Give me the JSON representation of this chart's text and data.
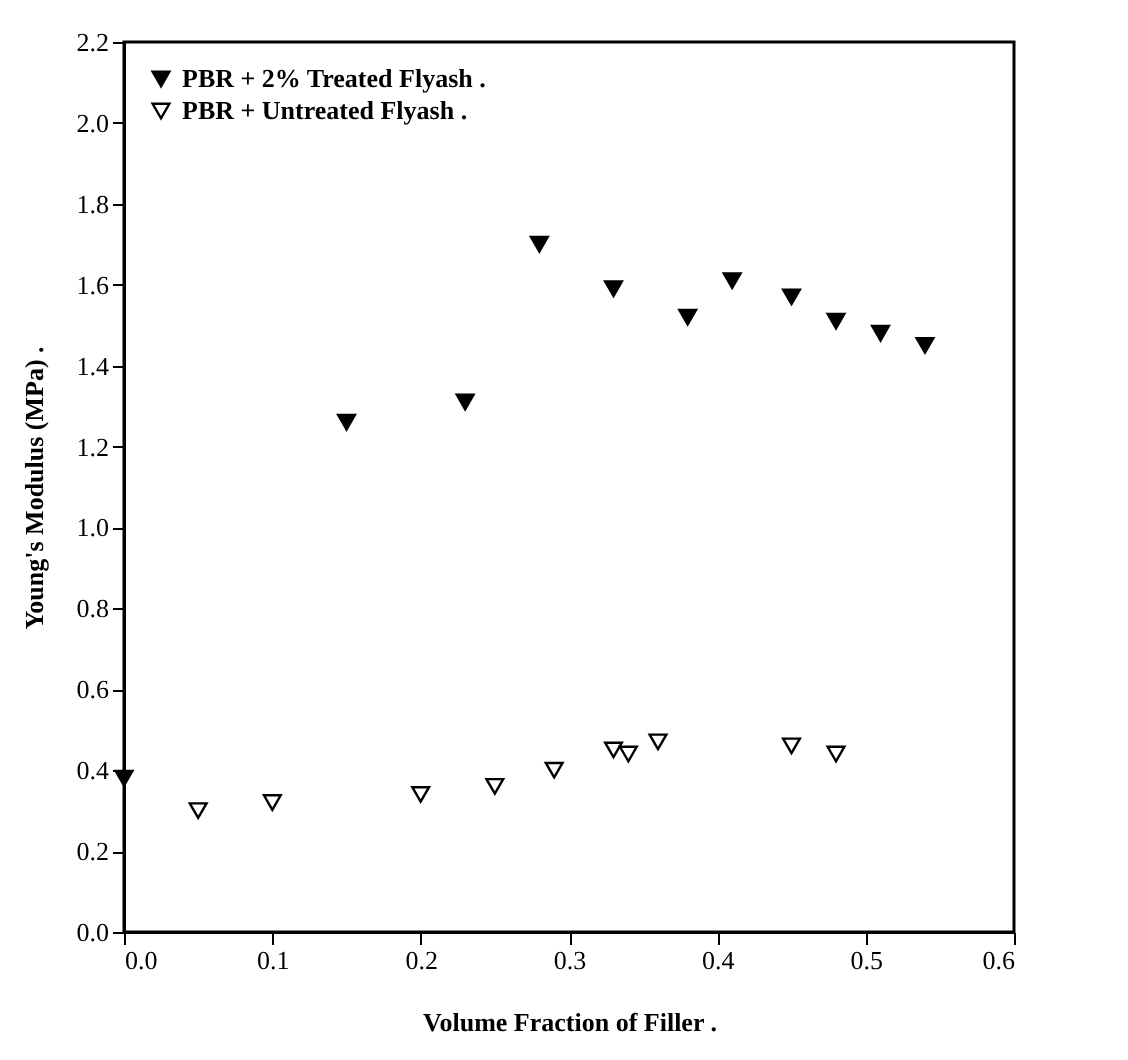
{
  "chart_data": {
    "type": "scatter",
    "xlabel": "Volume Fraction of Filler .",
    "ylabel": "Young's Modulus (MPa) .",
    "xlim": [
      0.0,
      0.6
    ],
    "xticks": [
      {
        "value": 0.0,
        "label": "0.0"
      },
      0.1,
      0.2,
      0.3,
      0.4,
      0.5,
      0.6
    ],
    "ylim": [
      0.0,
      2.2
    ],
    "yticks": [
      {
        "value": 0.0,
        "label": "0.0"
      },
      0.2,
      0.4,
      0.6,
      0.8,
      {
        "value": 1.0,
        "label": "1.0"
      },
      1.2,
      1.4,
      1.6,
      1.8,
      {
        "value": 2.0,
        "label": "2.0"
      },
      2.2
    ],
    "marker": "triangle-down",
    "legend": "top left",
    "grid": false,
    "series": [
      {
        "name": "PBR + 2% Treated Flyash .",
        "color": "#000000",
        "x": [
          0.0,
          0.15,
          0.23,
          0.28,
          0.33,
          0.38,
          0.41,
          0.45,
          0.48,
          0.51,
          0.54
        ],
        "values": [
          0.38,
          1.26,
          1.31,
          1.7,
          1.59,
          1.52,
          1.61,
          1.57,
          1.51,
          1.48,
          1.45
        ]
      },
      {
        "name": "PBR + Untreated Flyash .",
        "color": "#ffffff",
        "x": [
          0.05,
          0.1,
          0.2,
          0.25,
          0.29,
          0.33,
          0.34,
          0.36,
          0.45,
          0.48
        ],
        "values": [
          0.3,
          0.32,
          0.34,
          0.36,
          0.4,
          0.45,
          0.44,
          0.47,
          0.46,
          0.44
        ]
      }
    ]
  }
}
